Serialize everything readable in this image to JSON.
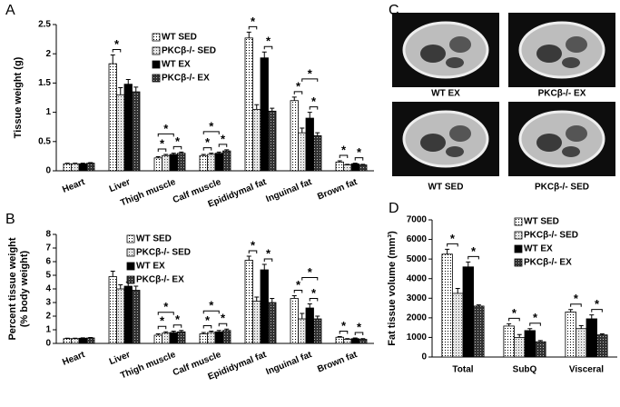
{
  "chart_data": [
    {
      "type": "bar",
      "panel_label": "A",
      "ylabel": [
        "Tissue weight (g)"
      ],
      "categories": [
        "Heart",
        "Liver",
        "Thigh muscle",
        "Calf muscle",
        "Epididymal fat",
        "Inguinal fat",
        "Brown fat"
      ],
      "ylim": [
        0,
        2.5
      ],
      "yticks": [
        0,
        0.5,
        1,
        1.5,
        2,
        2.5
      ],
      "legend": "upper center",
      "series": [
        {
          "name": "WT SED",
          "color": "#ffffff",
          "dot_color": "#000000",
          "values": [
            0.12,
            1.83,
            0.22,
            0.26,
            2.27,
            1.2,
            0.15
          ],
          "errors": [
            0.01,
            0.15,
            0.02,
            0.02,
            0.1,
            0.06,
            0.02
          ]
        },
        {
          "name": "PKCβ-/- SED",
          "color": "#e6e6e6",
          "dot_color": "#555555",
          "values": [
            0.12,
            1.3,
            0.26,
            0.28,
            1.05,
            0.65,
            0.1
          ],
          "errors": [
            0.01,
            0.12,
            0.02,
            0.02,
            0.08,
            0.08,
            0.01
          ]
        },
        {
          "name": "WT EX",
          "color": "#000000",
          "dot_color": null,
          "values": [
            0.12,
            1.48,
            0.28,
            0.3,
            1.93,
            0.9,
            0.12
          ],
          "errors": [
            0.01,
            0.08,
            0.02,
            0.02,
            0.1,
            0.1,
            0.01
          ]
        },
        {
          "name": "PKCβ-/- EX",
          "color": "#333333",
          "dot_color": "#bbbbbb",
          "values": [
            0.13,
            1.35,
            0.3,
            0.34,
            1.02,
            0.6,
            0.1
          ],
          "errors": [
            0.01,
            0.08,
            0.02,
            0.02,
            0.05,
            0.05,
            0.01
          ]
        }
      ],
      "significance": [
        {
          "label": "*",
          "category": "Liver",
          "between": [
            "WT SED",
            "PKCβ-/- SED"
          ]
        },
        {
          "label": "*",
          "category": "Thigh muscle",
          "between": [
            "WT SED",
            "PKCβ-/- SED"
          ]
        },
        {
          "label": "*",
          "category": "Thigh muscle",
          "between": [
            "WT EX",
            "PKCβ-/- EX"
          ]
        },
        {
          "label": "*",
          "category": "Thigh muscle",
          "between": [
            "WT SED",
            "WT EX"
          ]
        },
        {
          "label": "*",
          "category": "Calf muscle",
          "between": [
            "WT SED",
            "PKCβ-/- SED"
          ]
        },
        {
          "label": "*",
          "category": "Calf muscle",
          "between": [
            "WT EX",
            "PKCβ-/- EX"
          ]
        },
        {
          "label": "*",
          "category": "Calf muscle",
          "between": [
            "WT SED",
            "WT EX"
          ]
        },
        {
          "label": "*",
          "category": "Epididymal fat",
          "between": [
            "WT SED",
            "PKCβ-/- SED"
          ]
        },
        {
          "label": "*",
          "category": "Epididymal fat",
          "between": [
            "WT EX",
            "PKCβ-/- EX"
          ]
        },
        {
          "label": "*",
          "category": "Inguinal fat",
          "between": [
            "WT SED",
            "PKCβ-/- SED"
          ]
        },
        {
          "label": "*",
          "category": "Inguinal fat",
          "between": [
            "WT EX",
            "PKCβ-/- EX"
          ]
        },
        {
          "label": "*",
          "category": "Inguinal fat",
          "between": [
            "PKCβ-/- SED",
            "PKCβ-/- EX"
          ]
        },
        {
          "label": "*",
          "category": "Brown fat",
          "between": [
            "WT SED",
            "PKCβ-/- SED"
          ]
        },
        {
          "label": "*",
          "category": "Brown fat",
          "between": [
            "WT EX",
            "PKCβ-/- EX"
          ]
        }
      ]
    },
    {
      "type": "bar",
      "panel_label": "B",
      "ylabel": [
        "Percent tissue weight",
        "(% body weight)"
      ],
      "categories": [
        "Heart",
        "Liver",
        "Thigh muscle",
        "Calf muscle",
        "Epididymal fat",
        "Inguinal fat",
        "Brown fat"
      ],
      "ylim": [
        0,
        8
      ],
      "yticks": [
        0,
        1,
        2,
        3,
        4,
        5,
        6,
        7,
        8
      ],
      "legend": "upper left",
      "series": [
        {
          "name": "WT SED",
          "color": "#ffffff",
          "dot_color": "#000000",
          "values": [
            0.35,
            4.9,
            0.6,
            0.7,
            6.1,
            3.3,
            0.45
          ],
          "errors": [
            0.03,
            0.4,
            0.1,
            0.1,
            0.3,
            0.2,
            0.05
          ]
        },
        {
          "name": "PKCβ-/- SED",
          "color": "#e6e6e6",
          "dot_color": "#555555",
          "values": [
            0.35,
            4.0,
            0.75,
            0.8,
            3.1,
            1.8,
            0.3
          ],
          "errors": [
            0.03,
            0.3,
            0.1,
            0.1,
            0.3,
            0.4,
            0.05
          ]
        },
        {
          "name": "WT EX",
          "color": "#000000",
          "dot_color": null,
          "values": [
            0.38,
            4.2,
            0.8,
            0.85,
            5.4,
            2.6,
            0.35
          ],
          "errors": [
            0.03,
            0.3,
            0.1,
            0.1,
            0.4,
            0.3,
            0.05
          ]
        },
        {
          "name": "PKCβ-/- EX",
          "color": "#333333",
          "dot_color": "#bbbbbb",
          "values": [
            0.4,
            3.9,
            0.85,
            0.95,
            3.0,
            1.8,
            0.3
          ],
          "errors": [
            0.03,
            0.3,
            0.1,
            0.1,
            0.3,
            0.2,
            0.05
          ]
        }
      ],
      "significance": [
        {
          "label": "*",
          "category": "Thigh muscle",
          "between": [
            "WT SED",
            "PKCβ-/- SED"
          ]
        },
        {
          "label": "*",
          "category": "Thigh muscle",
          "between": [
            "WT EX",
            "PKCβ-/- EX"
          ]
        },
        {
          "label": "*",
          "category": "Thigh muscle",
          "between": [
            "WT SED",
            "WT EX"
          ]
        },
        {
          "label": "*",
          "category": "Calf muscle",
          "between": [
            "WT SED",
            "PKCβ-/- SED"
          ]
        },
        {
          "label": "*",
          "category": "Calf muscle",
          "between": [
            "WT EX",
            "PKCβ-/- EX"
          ]
        },
        {
          "label": "*",
          "category": "Calf muscle",
          "between": [
            "WT SED",
            "WT EX"
          ]
        },
        {
          "label": "*",
          "category": "Epididymal fat",
          "between": [
            "WT SED",
            "PKCβ-/- SED"
          ]
        },
        {
          "label": "*",
          "category": "Epididymal fat",
          "between": [
            "WT EX",
            "PKCβ-/- EX"
          ]
        },
        {
          "label": "*",
          "category": "Inguinal fat",
          "between": [
            "WT SED",
            "PKCβ-/- SED"
          ]
        },
        {
          "label": "*",
          "category": "Inguinal fat",
          "between": [
            "WT EX",
            "PKCβ-/- EX"
          ]
        },
        {
          "label": "*",
          "category": "Inguinal fat",
          "between": [
            "PKCβ-/- SED",
            "PKCβ-/- EX"
          ]
        },
        {
          "label": "*",
          "category": "Brown fat",
          "between": [
            "WT SED",
            "PKCβ-/- SED"
          ]
        },
        {
          "label": "*",
          "category": "Brown fat",
          "between": [
            "WT EX",
            "PKCβ-/- EX"
          ]
        }
      ]
    },
    {
      "type": "bar",
      "panel_label": "D",
      "ylabel": [
        "Fat tissue volume (mm³)"
      ],
      "categories": [
        "Total",
        "SubQ",
        "Visceral"
      ],
      "ylim": [
        0,
        7000
      ],
      "yticks": [
        0,
        1000,
        2000,
        3000,
        4000,
        5000,
        6000,
        7000
      ],
      "legend": "upper right",
      "series": [
        {
          "name": "WT SED",
          "color": "#ffffff",
          "dot_color": "#000000",
          "values": [
            5250,
            1580,
            2300
          ],
          "errors": [
            250,
            120,
            120
          ]
        },
        {
          "name": "PKCβ-/- SED",
          "color": "#e6e6e6",
          "dot_color": "#555555",
          "values": [
            3250,
            1000,
            1450
          ],
          "errors": [
            250,
            150,
            150
          ]
        },
        {
          "name": "WT EX",
          "color": "#000000",
          "dot_color": null,
          "values": [
            4600,
            1350,
            1950
          ],
          "errors": [
            250,
            100,
            200
          ]
        },
        {
          "name": "PKCβ-/- EX",
          "color": "#333333",
          "dot_color": "#bbbbbb",
          "values": [
            2600,
            780,
            1130
          ],
          "errors": [
            60,
            60,
            50
          ]
        }
      ],
      "significance": [
        {
          "label": "*",
          "category": "Total",
          "between": [
            "WT SED",
            "PKCβ-/- SED"
          ]
        },
        {
          "label": "*",
          "category": "Total",
          "between": [
            "WT EX",
            "PKCβ-/- EX"
          ]
        },
        {
          "label": "*",
          "category": "SubQ",
          "between": [
            "WT SED",
            "PKCβ-/- SED"
          ]
        },
        {
          "label": "*",
          "category": "SubQ",
          "between": [
            "WT EX",
            "PKCβ-/- EX"
          ]
        },
        {
          "label": "*",
          "category": "Visceral",
          "between": [
            "WT SED",
            "PKCβ-/- SED"
          ]
        },
        {
          "label": "*",
          "category": "Visceral",
          "between": [
            "WT EX",
            "PKCβ-/- EX"
          ]
        }
      ]
    }
  ],
  "panel_c": {
    "panel_label": "C",
    "images": [
      "WT EX",
      "PKCβ-/- EX",
      "WT SED",
      "PKCβ-/- SED"
    ]
  }
}
